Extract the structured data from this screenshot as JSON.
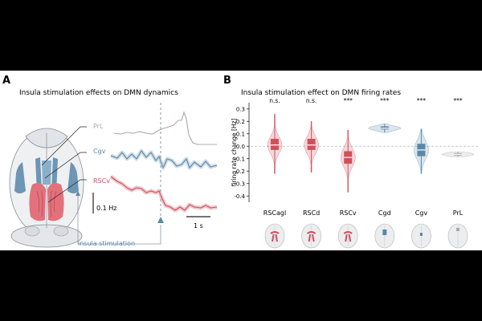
{
  "panel_a": {
    "letter": "A",
    "title": "Insula stimulation effects on DMN dynamics",
    "trace_labels": {
      "prl": "PrL",
      "cgv": "Cgv",
      "rscv": "RSCv"
    },
    "scalebar_y": "0.1 Hz",
    "scalebar_x": "1 s",
    "stim_label": "insula stimulation",
    "colors": {
      "prl": "#a8a8a8",
      "cgv": "#5b88a8",
      "rscv": "#d04f5b",
      "stim": "#8a9aaa"
    }
  },
  "panel_b": {
    "letter": "B",
    "title": "Insula stimulation effect on DMN firing rates"
  },
  "chart_data": {
    "type": "violin",
    "title": "Insula stimulation effect on DMN firing rates",
    "xlabel": "",
    "ylabel": "firing rate change [Hz]",
    "ylim": [
      -0.45,
      0.35
    ],
    "yticks": [
      0.3,
      0.2,
      0.1,
      0.0,
      -0.1,
      -0.2,
      -0.3,
      -0.4
    ],
    "ytick_labels": [
      "0.3",
      "0.2",
      "0.1",
      "0.0",
      "-0.1",
      "-0.2",
      "-0.3",
      "-0.4"
    ],
    "categories": [
      "RSCagl",
      "RSCd",
      "RSCv",
      "Cgd",
      "Cgv",
      "PrL"
    ],
    "significance": [
      "n.s.",
      "n.s.",
      "***",
      "***",
      "***",
      "***"
    ],
    "colors": [
      "#d04f5b",
      "#d04f5b",
      "#d04f5b",
      "#5b88a8",
      "#5b88a8",
      "#a8a8a8"
    ],
    "median": [
      0.01,
      0.01,
      -0.09,
      0.145,
      -0.03,
      -0.065
    ],
    "q1": [
      -0.03,
      -0.03,
      -0.14,
      0.135,
      -0.08,
      -0.075
    ],
    "q3": [
      0.06,
      0.06,
      -0.04,
      0.16,
      0.02,
      -0.055
    ],
    "min": [
      -0.22,
      -0.21,
      -0.37,
      0.11,
      -0.22,
      -0.085
    ],
    "max": [
      0.26,
      0.2,
      0.13,
      0.18,
      0.14,
      -0.045
    ]
  }
}
